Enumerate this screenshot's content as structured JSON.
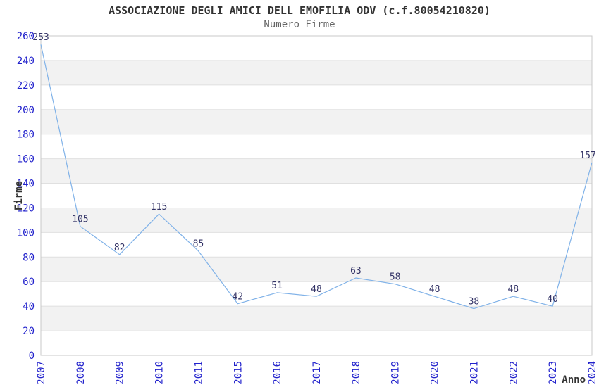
{
  "header": {
    "title": "ASSOCIAZIONE DEGLI AMICI DELL EMOFILIA ODV (c.f.80054210820)",
    "subtitle": "Numero Firme"
  },
  "chart_data": {
    "type": "line",
    "title": "ASSOCIAZIONE DEGLI AMICI DELL EMOFILIA ODV (c.f.80054210820)",
    "subtitle": "Numero Firme",
    "xlabel": "Anno",
    "ylabel": "Firme",
    "categories": [
      "2007",
      "2008",
      "2009",
      "2010",
      "2011",
      "2015",
      "2016",
      "2017",
      "2018",
      "2019",
      "2020",
      "2021",
      "2022",
      "2023",
      "2024"
    ],
    "series": [
      {
        "name": "Numero Firme",
        "values": [
          253,
          105,
          82,
          115,
          85,
          42,
          51,
          48,
          63,
          58,
          48,
          38,
          48,
          40,
          157
        ]
      }
    ],
    "ylim": [
      0,
      260
    ],
    "yticks": [
      0,
      20,
      40,
      60,
      80,
      100,
      120,
      140,
      160,
      180,
      200,
      220,
      240,
      260
    ],
    "grid": true,
    "alternating_bands": true,
    "legend": false,
    "data_labels": true
  },
  "colors": {
    "background": "#ffffff",
    "line": "#80b2e8",
    "tick_label": "#2222cc",
    "data_label": "#333366",
    "band": "#f2f2f2",
    "gridline": "#e0e0e0",
    "plot_border": "#c8c8c8",
    "title": "#333333",
    "subtitle": "#666666",
    "axis_label": "#333333"
  }
}
